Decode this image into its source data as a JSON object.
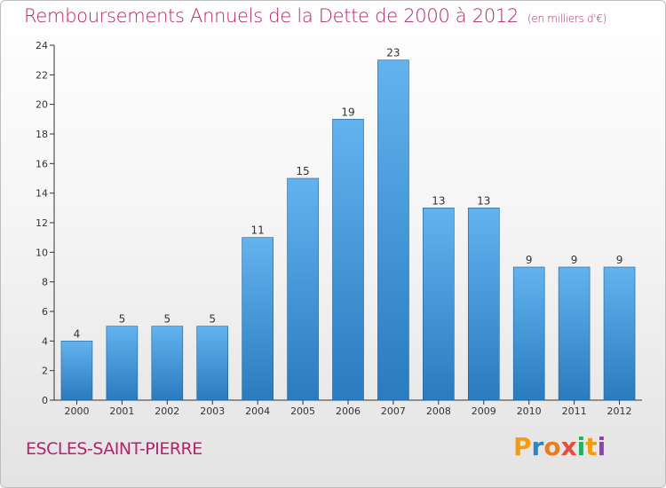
{
  "header": {
    "title": "Remboursements Annuels de la Dette de 2000 à 2012",
    "subtitle": "(en milliers d'€)"
  },
  "footer": {
    "city": "ESCLES-SAINT-PIERRE",
    "logo": {
      "letters": [
        "P",
        "r",
        "o",
        "x",
        "i",
        "t",
        "i"
      ],
      "colors": [
        "#f39c12",
        "#2e86c1",
        "#e67e22",
        "#e74c3c",
        "#27ae60",
        "#f39c12",
        "#8e44ad"
      ]
    }
  },
  "colors": {
    "bar_light": "#62b3ee",
    "bar_dark": "#2a7bbf",
    "accent": "#b5236e",
    "axis": "#333333"
  },
  "chart_data": {
    "type": "bar",
    "categories": [
      "2000",
      "2001",
      "2002",
      "2003",
      "2004",
      "2005",
      "2006",
      "2007",
      "2008",
      "2009",
      "2010",
      "2011",
      "2012"
    ],
    "values": [
      4,
      5,
      5,
      5,
      11,
      15,
      19,
      23,
      13,
      13,
      9,
      9,
      9
    ],
    "ylim": [
      0,
      24
    ],
    "yticks": [
      0,
      2,
      4,
      6,
      8,
      10,
      12,
      14,
      16,
      18,
      20,
      22,
      24
    ],
    "grid": false,
    "title": "Remboursements Annuels de la Dette de 2000 à 2012",
    "subtitle": "(en milliers d'€)"
  }
}
